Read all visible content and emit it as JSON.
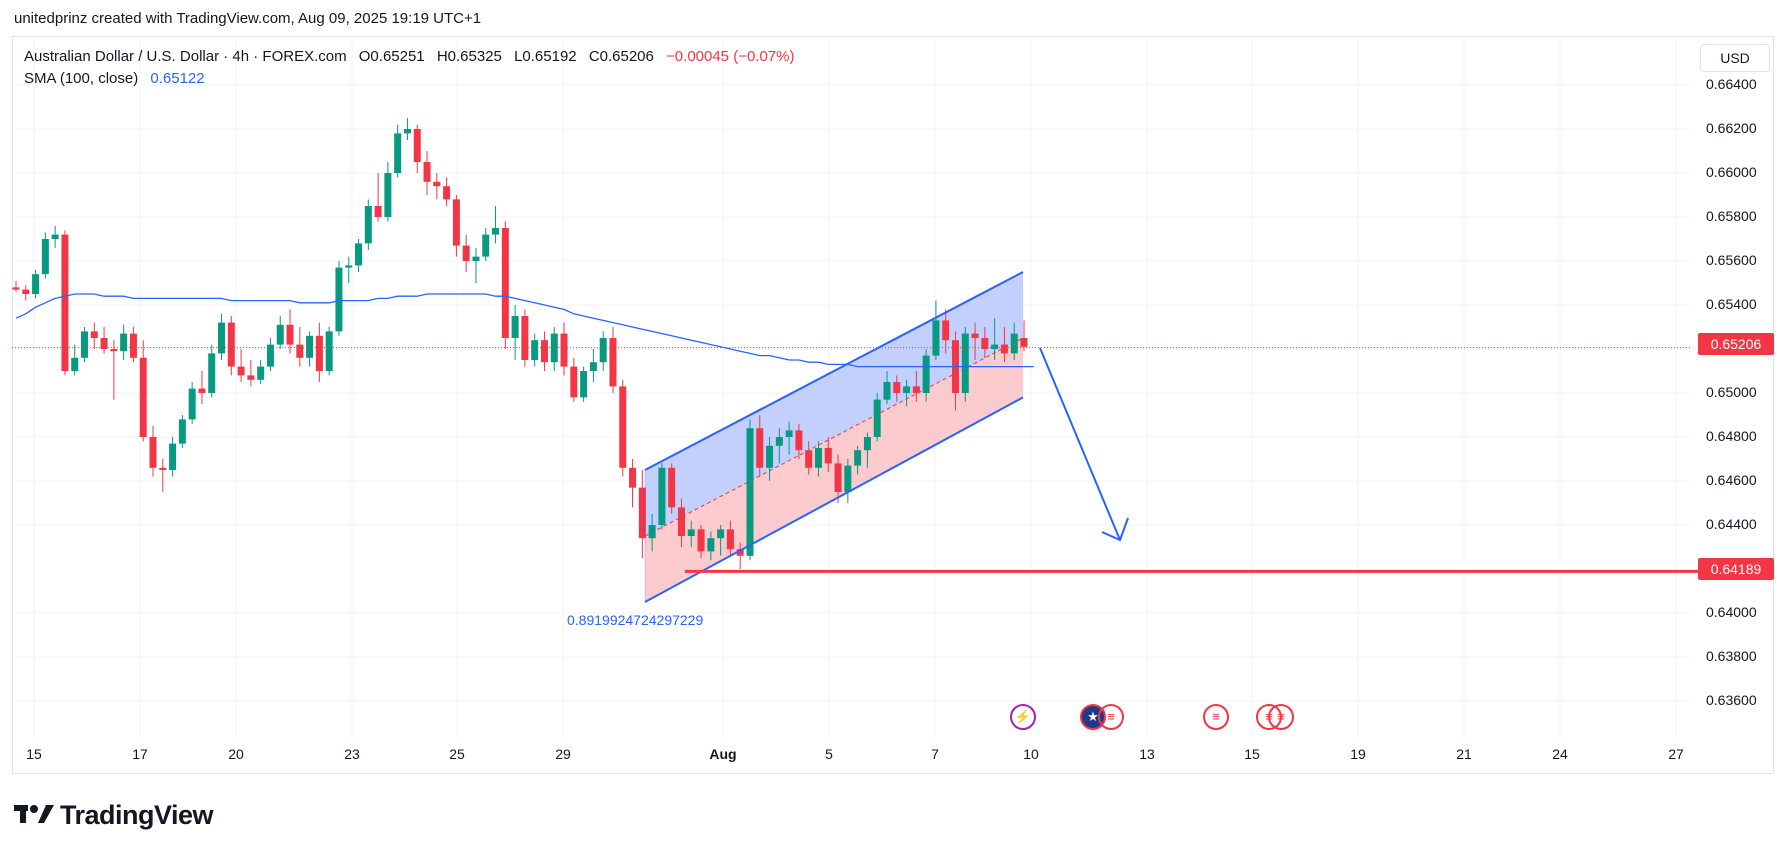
{
  "header": {
    "attribution": "unitedprinz created with TradingView.com, Aug 09, 2025 19:19 UTC+1"
  },
  "legend": {
    "symbol": "Australian Dollar / U.S. Dollar · 4h · FOREX.com",
    "open": "O0.65251",
    "high": "H0.65325",
    "low": "L0.65192",
    "close": "C0.65206",
    "change": "−0.00045 (−0.07%)",
    "indicator": "SMA (100, close)",
    "indicator_value": "0.65122"
  },
  "currency_button": "USD",
  "price_labels": {
    "current": "0.65206",
    "support": "0.64189"
  },
  "fib_label": "0.8919924724297229",
  "brand": "TradingView",
  "colors": {
    "up": "#089981",
    "down": "#f23645",
    "sma": "#2962ff",
    "channel_fill": "#b9c7fb",
    "channel_fill_low": "#fbc2c6",
    "support": "#f23645"
  },
  "chart_data": {
    "type": "candlestick",
    "title": "Australian Dollar / U.S. Dollar · 4h · FOREX.com",
    "y_ticks": [
      "0.66400",
      "0.66200",
      "0.66000",
      "0.65800",
      "0.65600",
      "0.65400",
      "0.65000",
      "0.64800",
      "0.64600",
      "0.64400",
      "0.64000",
      "0.63800",
      "0.63600"
    ],
    "ylim": [
      0.6345,
      0.665
    ],
    "x_ticks": [
      "15",
      "17",
      "20",
      "23",
      "25",
      "29",
      "Aug",
      "5",
      "7",
      "10",
      "13",
      "15",
      "19",
      "21",
      "24",
      "27"
    ],
    "grid": true,
    "series": [
      {
        "name": "AUDUSD 4h candles",
        "ohlc": [
          [
            0.6548,
            0.6551,
            0.6546,
            0.6547
          ],
          [
            0.6547,
            0.6549,
            0.6542,
            0.6545
          ],
          [
            0.6545,
            0.6556,
            0.6543,
            0.6554
          ],
          [
            0.6554,
            0.6573,
            0.6552,
            0.657
          ],
          [
            0.657,
            0.6576,
            0.6566,
            0.6572
          ],
          [
            0.6572,
            0.6574,
            0.6508,
            0.651
          ],
          [
            0.651,
            0.6522,
            0.6508,
            0.6516
          ],
          [
            0.6516,
            0.653,
            0.6514,
            0.6528
          ],
          [
            0.6528,
            0.6532,
            0.652,
            0.6525
          ],
          [
            0.6525,
            0.653,
            0.6518,
            0.652
          ],
          [
            0.652,
            0.6524,
            0.6497,
            0.6519
          ],
          [
            0.6519,
            0.6531,
            0.6515,
            0.6527
          ],
          [
            0.6527,
            0.653,
            0.6514,
            0.6516
          ],
          [
            0.6516,
            0.6524,
            0.6478,
            0.648
          ],
          [
            0.648,
            0.6485,
            0.6462,
            0.6466
          ],
          [
            0.6466,
            0.647,
            0.6455,
            0.6465
          ],
          [
            0.6465,
            0.648,
            0.6462,
            0.6477
          ],
          [
            0.6477,
            0.649,
            0.6475,
            0.6488
          ],
          [
            0.6488,
            0.6505,
            0.6486,
            0.6502
          ],
          [
            0.6502,
            0.651,
            0.6495,
            0.65
          ],
          [
            0.65,
            0.6522,
            0.6498,
            0.6518
          ],
          [
            0.6518,
            0.6536,
            0.6515,
            0.6532
          ],
          [
            0.6532,
            0.6535,
            0.6508,
            0.6512
          ],
          [
            0.6512,
            0.652,
            0.6505,
            0.6508
          ],
          [
            0.6508,
            0.6515,
            0.6503,
            0.6506
          ],
          [
            0.6506,
            0.6515,
            0.6504,
            0.6512
          ],
          [
            0.6512,
            0.6525,
            0.651,
            0.6522
          ],
          [
            0.6522,
            0.6535,
            0.652,
            0.6531
          ],
          [
            0.6531,
            0.6538,
            0.6518,
            0.6522
          ],
          [
            0.6522,
            0.653,
            0.6512,
            0.6516
          ],
          [
            0.6516,
            0.6528,
            0.6512,
            0.6526
          ],
          [
            0.6526,
            0.6532,
            0.6505,
            0.651
          ],
          [
            0.651,
            0.653,
            0.6508,
            0.6528
          ],
          [
            0.6528,
            0.656,
            0.6526,
            0.6557
          ],
          [
            0.6557,
            0.6562,
            0.655,
            0.6558
          ],
          [
            0.6558,
            0.657,
            0.6555,
            0.6568
          ],
          [
            0.6568,
            0.6588,
            0.6565,
            0.6585
          ],
          [
            0.6585,
            0.66,
            0.6578,
            0.658
          ],
          [
            0.658,
            0.6605,
            0.6578,
            0.66
          ],
          [
            0.66,
            0.6622,
            0.6598,
            0.6618
          ],
          [
            0.6618,
            0.6625,
            0.6615,
            0.662
          ],
          [
            0.662,
            0.6622,
            0.66,
            0.6605
          ],
          [
            0.6605,
            0.661,
            0.659,
            0.6596
          ],
          [
            0.6596,
            0.66,
            0.6588,
            0.6594
          ],
          [
            0.6594,
            0.6598,
            0.6585,
            0.6588
          ],
          [
            0.6588,
            0.659,
            0.6562,
            0.6567
          ],
          [
            0.6567,
            0.6572,
            0.6555,
            0.656
          ],
          [
            0.656,
            0.6566,
            0.655,
            0.6562
          ],
          [
            0.6562,
            0.6575,
            0.656,
            0.6572
          ],
          [
            0.6572,
            0.6585,
            0.6568,
            0.6575
          ],
          [
            0.6575,
            0.6578,
            0.652,
            0.6525
          ],
          [
            0.6525,
            0.654,
            0.6515,
            0.6535
          ],
          [
            0.6535,
            0.6538,
            0.6512,
            0.6515
          ],
          [
            0.6515,
            0.6527,
            0.6512,
            0.6524
          ],
          [
            0.6524,
            0.6528,
            0.651,
            0.6514
          ],
          [
            0.6514,
            0.653,
            0.651,
            0.6527
          ],
          [
            0.6527,
            0.6532,
            0.6508,
            0.6512
          ],
          [
            0.6512,
            0.6516,
            0.6496,
            0.6498
          ],
          [
            0.6498,
            0.6512,
            0.6496,
            0.651
          ],
          [
            0.651,
            0.652,
            0.6505,
            0.6514
          ],
          [
            0.6514,
            0.6528,
            0.651,
            0.6525
          ],
          [
            0.6525,
            0.653,
            0.65,
            0.6503
          ],
          [
            0.6503,
            0.6506,
            0.6462,
            0.6466
          ],
          [
            0.6466,
            0.647,
            0.6448,
            0.6457
          ],
          [
            0.6457,
            0.6465,
            0.6425,
            0.6434
          ],
          [
            0.6434,
            0.6445,
            0.6428,
            0.644
          ],
          [
            0.644,
            0.6468,
            0.6438,
            0.6466
          ],
          [
            0.6466,
            0.6468,
            0.6445,
            0.6448
          ],
          [
            0.6448,
            0.6452,
            0.643,
            0.6435
          ],
          [
            0.6435,
            0.6442,
            0.643,
            0.6438
          ],
          [
            0.6438,
            0.644,
            0.6425,
            0.6428
          ],
          [
            0.6428,
            0.6437,
            0.6424,
            0.6434
          ],
          [
            0.6434,
            0.644,
            0.6426,
            0.6438
          ],
          [
            0.6438,
            0.6442,
            0.6426,
            0.6429
          ],
          [
            0.6429,
            0.6432,
            0.642,
            0.6426
          ],
          [
            0.6426,
            0.6488,
            0.6424,
            0.6484
          ],
          [
            0.6484,
            0.649,
            0.6462,
            0.6466
          ],
          [
            0.6466,
            0.648,
            0.646,
            0.6476
          ],
          [
            0.6476,
            0.6484,
            0.6468,
            0.648
          ],
          [
            0.648,
            0.6487,
            0.6472,
            0.6483
          ],
          [
            0.6483,
            0.6486,
            0.647,
            0.6474
          ],
          [
            0.6474,
            0.6478,
            0.6463,
            0.6466
          ],
          [
            0.6466,
            0.6478,
            0.6462,
            0.6475
          ],
          [
            0.6475,
            0.648,
            0.6464,
            0.6468
          ],
          [
            0.6468,
            0.6472,
            0.645,
            0.6455
          ],
          [
            0.6455,
            0.647,
            0.645,
            0.6467
          ],
          [
            0.6467,
            0.6476,
            0.6463,
            0.6474
          ],
          [
            0.6474,
            0.6482,
            0.6466,
            0.648
          ],
          [
            0.648,
            0.65,
            0.6478,
            0.6497
          ],
          [
            0.6497,
            0.651,
            0.6495,
            0.6505
          ],
          [
            0.6505,
            0.6508,
            0.6496,
            0.65
          ],
          [
            0.65,
            0.6506,
            0.6494,
            0.6503
          ],
          [
            0.6503,
            0.651,
            0.6496,
            0.65
          ],
          [
            0.65,
            0.652,
            0.6496,
            0.6517
          ],
          [
            0.6517,
            0.6542,
            0.6515,
            0.6533
          ],
          [
            0.6533,
            0.6538,
            0.6518,
            0.6524
          ],
          [
            0.6524,
            0.6528,
            0.6492,
            0.65
          ],
          [
            0.65,
            0.653,
            0.6496,
            0.6527
          ],
          [
            0.6527,
            0.6532,
            0.6515,
            0.6525
          ],
          [
            0.6525,
            0.653,
            0.6516,
            0.652
          ],
          [
            0.652,
            0.6534,
            0.6515,
            0.6522
          ],
          [
            0.6522,
            0.653,
            0.6514,
            0.6518
          ],
          [
            0.6518,
            0.6532,
            0.6515,
            0.6527
          ],
          [
            0.6525,
            0.6533,
            0.6519,
            0.6521
          ]
        ]
      },
      {
        "name": "SMA (100, close)",
        "values": [
          0.6534,
          0.6536,
          0.6539,
          0.6541,
          0.6543,
          0.6544,
          0.6545,
          0.6545,
          0.6545,
          0.6544,
          0.6544,
          0.6544,
          0.6543,
          0.6543,
          0.6543,
          0.6543,
          0.6543,
          0.6543,
          0.6543,
          0.6543,
          0.6543,
          0.6543,
          0.6542,
          0.6542,
          0.6542,
          0.6542,
          0.6542,
          0.6542,
          0.6542,
          0.6541,
          0.6541,
          0.6541,
          0.6541,
          0.6542,
          0.6542,
          0.6542,
          0.6542,
          0.6543,
          0.6543,
          0.6544,
          0.6544,
          0.6544,
          0.6545,
          0.6545,
          0.6545,
          0.6545,
          0.6545,
          0.6545,
          0.6545,
          0.6544,
          0.6544,
          0.6543,
          0.6542,
          0.6541,
          0.654,
          0.6539,
          0.6538,
          0.6536,
          0.6535,
          0.6534,
          0.6533,
          0.6532,
          0.6531,
          0.653,
          0.6529,
          0.6528,
          0.6527,
          0.6526,
          0.6525,
          0.6524,
          0.6523,
          0.6522,
          0.6521,
          0.652,
          0.6519,
          0.6518,
          0.6517,
          0.6517,
          0.6516,
          0.6515,
          0.6515,
          0.6514,
          0.6514,
          0.6513,
          0.6513,
          0.6513,
          0.6512,
          0.6512,
          0.6512,
          0.6512,
          0.6512,
          0.6512,
          0.6512,
          0.6512,
          0.6512,
          0.6512,
          0.6512,
          0.6512,
          0.6512,
          0.6512,
          0.6512,
          0.6512,
          0.6512,
          0.6512,
          0.6512
        ]
      }
    ],
    "current_price": 0.65206,
    "support_level": 0.64189,
    "channel": {
      "upper": [
        0.6465,
        0.6555
      ],
      "lower": [
        0.6405,
        0.6498
      ],
      "mid": [
        0.6435,
        0.6525
      ]
    },
    "events": [
      "lightning",
      "AU-US",
      "AU-US",
      "US",
      "US-US"
    ]
  }
}
